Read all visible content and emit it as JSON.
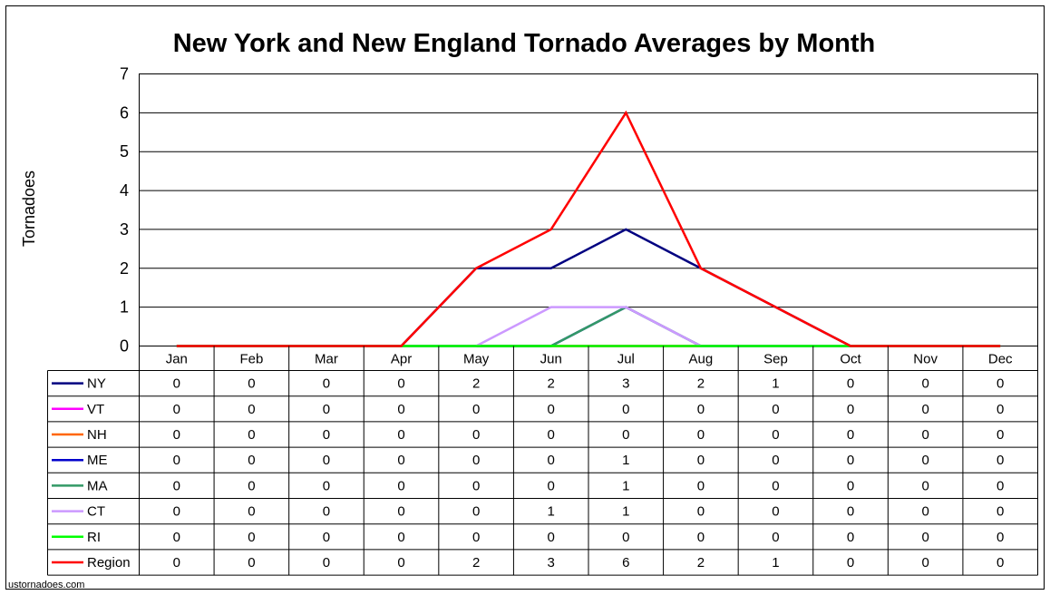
{
  "chart_data": {
    "type": "line",
    "title": "New York and New England Tornado Averages by Month",
    "ylabel": "Tornadoes",
    "xlabel": "",
    "categories": [
      "Jan",
      "Feb",
      "Mar",
      "Apr",
      "May",
      "Jun",
      "Jul",
      "Aug",
      "Sep",
      "Oct",
      "Nov",
      "Dec"
    ],
    "ylim": [
      0,
      7
    ],
    "yticks": [
      0,
      1,
      2,
      3,
      4,
      5,
      6,
      7
    ],
    "grid": true,
    "legend": "data-table",
    "series": [
      {
        "name": "NY",
        "color": "#000080",
        "values": [
          0,
          0,
          0,
          0,
          2,
          2,
          3,
          2,
          1,
          0,
          0,
          0
        ]
      },
      {
        "name": "VT",
        "color": "#ff00ff",
        "values": [
          0,
          0,
          0,
          0,
          0,
          0,
          0,
          0,
          0,
          0,
          0,
          0
        ]
      },
      {
        "name": "NH",
        "color": "#ff6600",
        "values": [
          0,
          0,
          0,
          0,
          0,
          0,
          0,
          0,
          0,
          0,
          0,
          0
        ]
      },
      {
        "name": "ME",
        "color": "#0000cc",
        "values": [
          0,
          0,
          0,
          0,
          0,
          0,
          1,
          0,
          0,
          0,
          0,
          0
        ]
      },
      {
        "name": "MA",
        "color": "#339966",
        "values": [
          0,
          0,
          0,
          0,
          0,
          0,
          1,
          0,
          0,
          0,
          0,
          0
        ]
      },
      {
        "name": "CT",
        "color": "#cc99ff",
        "values": [
          0,
          0,
          0,
          0,
          0,
          1,
          1,
          0,
          0,
          0,
          0,
          0
        ]
      },
      {
        "name": "RI",
        "color": "#00ff00",
        "values": [
          0,
          0,
          0,
          0,
          0,
          0,
          0,
          0,
          0,
          0,
          0,
          0
        ]
      },
      {
        "name": "Region",
        "color": "#ff0000",
        "values": [
          0,
          0,
          0,
          0,
          2,
          3,
          6,
          2,
          1,
          0,
          0,
          0
        ]
      }
    ]
  },
  "footer": {
    "credit": "ustornadoes.com"
  }
}
